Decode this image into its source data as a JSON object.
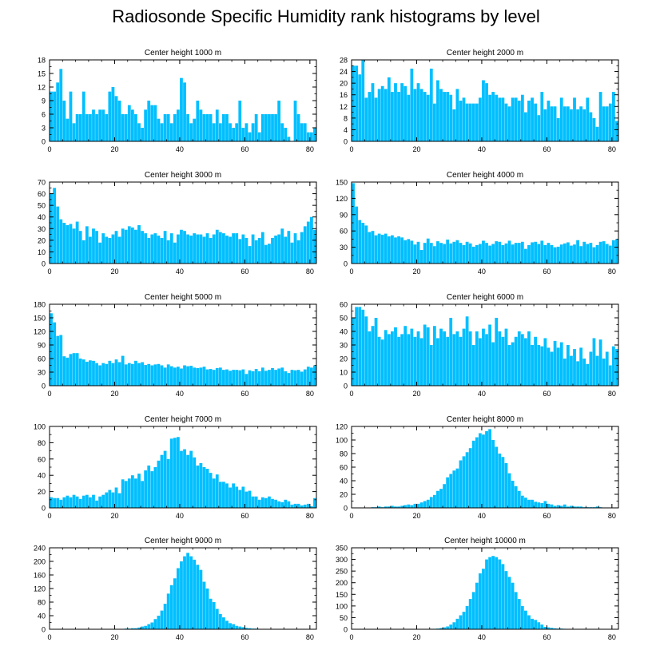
{
  "title": "Radiosonde Specific Humidity rank histograms by level",
  "bar_color": "#00bfff",
  "chart_data": [
    {
      "type": "bar",
      "title": "Center height 1000 m",
      "xlim": [
        0,
        82
      ],
      "ylim": [
        0,
        18
      ],
      "xticks": [
        0,
        20,
        40,
        60,
        80
      ],
      "yticks": [
        0,
        3,
        6,
        9,
        12,
        15,
        18
      ],
      "values": [
        11,
        11,
        13,
        16,
        9,
        5,
        11,
        4,
        6,
        6,
        11,
        6,
        6,
        7,
        6,
        7,
        7,
        6,
        11,
        12,
        10,
        9,
        6,
        6,
        8,
        7,
        6,
        4,
        3,
        7,
        9,
        8,
        8,
        5,
        4,
        6,
        6,
        4,
        6,
        7,
        14,
        13,
        6,
        4,
        5,
        9,
        7,
        6,
        6,
        6,
        4,
        7,
        4,
        6,
        6,
        4,
        3,
        4,
        9,
        3,
        4,
        2,
        4,
        6,
        2,
        6,
        6,
        6,
        6,
        6,
        9,
        4,
        3,
        1,
        0,
        9,
        6,
        4,
        4,
        2,
        2,
        3
      ]
    },
    {
      "type": "bar",
      "title": "Center height 2000 m",
      "xlim": [
        0,
        82
      ],
      "ylim": [
        0,
        28
      ],
      "xticks": [
        0,
        20,
        40,
        60,
        80
      ],
      "yticks": [
        0,
        4,
        8,
        12,
        16,
        20,
        24,
        28
      ],
      "values": [
        26,
        26,
        23,
        28,
        15,
        17,
        20,
        15,
        18,
        19,
        18,
        22,
        17,
        20,
        17,
        20,
        19,
        16,
        25,
        18,
        20,
        18,
        17,
        16,
        25,
        13,
        21,
        18,
        17,
        17,
        16,
        11,
        18,
        14,
        15,
        13,
        13,
        13,
        13,
        15,
        21,
        20,
        16,
        17,
        16,
        15,
        15,
        13,
        12,
        15,
        15,
        14,
        16,
        10,
        14,
        15,
        13,
        9,
        17,
        11,
        14,
        12,
        12,
        8,
        15,
        12,
        12,
        11,
        15,
        11,
        12,
        11,
        15,
        10,
        8,
        5,
        17,
        12,
        12,
        13,
        17,
        7
      ]
    },
    {
      "type": "bar",
      "title": "Center height 3000 m",
      "xlim": [
        0,
        82
      ],
      "ylim": [
        0,
        70
      ],
      "xticks": [
        0,
        20,
        40,
        60,
        80
      ],
      "yticks": [
        0,
        10,
        20,
        30,
        40,
        50,
        60,
        70
      ],
      "values": [
        60,
        65,
        49,
        38,
        35,
        33,
        34,
        30,
        36,
        28,
        20,
        32,
        23,
        30,
        28,
        18,
        26,
        23,
        22,
        25,
        28,
        23,
        30,
        29,
        32,
        31,
        29,
        33,
        28,
        26,
        22,
        25,
        26,
        24,
        22,
        28,
        20,
        26,
        18,
        25,
        29,
        28,
        25,
        24,
        26,
        25,
        25,
        23,
        26,
        22,
        25,
        29,
        27,
        26,
        24,
        23,
        26,
        26,
        21,
        25,
        22,
        15,
        25,
        20,
        22,
        27,
        16,
        17,
        22,
        24,
        25,
        30,
        23,
        28,
        18,
        26,
        20,
        27,
        32,
        36,
        40,
        29
      ]
    },
    {
      "type": "bar",
      "title": "Center height 4000 m",
      "xlim": [
        0,
        82
      ],
      "ylim": [
        0,
        150
      ],
      "xticks": [
        0,
        20,
        40,
        60,
        80
      ],
      "yticks": [
        0,
        30,
        60,
        90,
        120,
        150
      ],
      "values": [
        148,
        105,
        80,
        75,
        70,
        58,
        60,
        52,
        55,
        53,
        55,
        50,
        52,
        48,
        50,
        48,
        43,
        45,
        42,
        35,
        40,
        25,
        38,
        46,
        38,
        32,
        41,
        38,
        36,
        44,
        37,
        40,
        43,
        38,
        34,
        40,
        37,
        31,
        34,
        36,
        42,
        38,
        33,
        36,
        41,
        40,
        34,
        37,
        42,
        35,
        38,
        38,
        40,
        27,
        34,
        39,
        40,
        36,
        42,
        34,
        38,
        34,
        30,
        31,
        35,
        37,
        39,
        33,
        35,
        43,
        32,
        40,
        36,
        38,
        30,
        34,
        40,
        41,
        36,
        33,
        43,
        45
      ]
    },
    {
      "type": "bar",
      "title": "Center height 5000 m",
      "xlim": [
        0,
        82
      ],
      "ylim": [
        0,
        180
      ],
      "xticks": [
        0,
        20,
        40,
        60,
        80
      ],
      "yticks": [
        0,
        30,
        60,
        90,
        120,
        150,
        180
      ],
      "values": [
        160,
        140,
        110,
        112,
        65,
        62,
        70,
        72,
        72,
        60,
        58,
        53,
        56,
        55,
        50,
        45,
        50,
        48,
        55,
        50,
        58,
        52,
        66,
        47,
        50,
        48,
        55,
        50,
        52,
        46,
        48,
        45,
        47,
        48,
        45,
        40,
        47,
        43,
        40,
        42,
        38,
        45,
        43,
        44,
        40,
        39,
        40,
        42,
        36,
        37,
        35,
        39,
        40,
        35,
        36,
        33,
        35,
        35,
        34,
        36,
        26,
        34,
        32,
        37,
        32,
        40,
        33,
        35,
        39,
        35,
        38,
        40,
        32,
        28,
        35,
        34,
        35,
        31,
        36,
        42,
        40,
        45
      ]
    },
    {
      "type": "bar",
      "title": "Center height 6000 m",
      "xlim": [
        0,
        82
      ],
      "ylim": [
        0,
        60
      ],
      "xticks": [
        0,
        20,
        40,
        60,
        80
      ],
      "yticks": [
        0,
        10,
        20,
        30,
        40,
        50,
        60
      ],
      "values": [
        50,
        58,
        58,
        56,
        51,
        40,
        44,
        50,
        36,
        34,
        41,
        38,
        40,
        43,
        36,
        38,
        44,
        38,
        42,
        36,
        40,
        35,
        45,
        43,
        30,
        44,
        35,
        42,
        40,
        36,
        50,
        38,
        40,
        36,
        42,
        51,
        40,
        30,
        40,
        35,
        42,
        38,
        45,
        32,
        50,
        40,
        36,
        42,
        30,
        32,
        36,
        40,
        38,
        35,
        40,
        30,
        36,
        30,
        29,
        35,
        28,
        25,
        33,
        28,
        32,
        20,
        30,
        22,
        27,
        18,
        28,
        20,
        16,
        25,
        35,
        22,
        34,
        20,
        25,
        15,
        29,
        27
      ]
    },
    {
      "type": "bar",
      "title": "Center height 7000 m",
      "xlim": [
        0,
        82
      ],
      "ylim": [
        0,
        100
      ],
      "xticks": [
        0,
        20,
        40,
        60,
        80
      ],
      "yticks": [
        0,
        20,
        40,
        60,
        80,
        100
      ],
      "values": [
        13,
        12,
        12,
        10,
        13,
        15,
        13,
        16,
        14,
        11,
        15,
        16,
        13,
        16,
        9,
        14,
        16,
        19,
        22,
        19,
        25,
        18,
        35,
        33,
        36,
        40,
        36,
        42,
        33,
        46,
        52,
        45,
        50,
        58,
        65,
        70,
        60,
        85,
        86,
        87,
        70,
        72,
        65,
        70,
        62,
        52,
        55,
        50,
        48,
        43,
        36,
        41,
        32,
        32,
        30,
        25,
        30,
        26,
        22,
        26,
        20,
        21,
        14,
        14,
        10,
        13,
        12,
        14,
        11,
        10,
        8,
        7,
        10,
        8,
        4,
        5,
        5,
        3,
        4,
        5,
        2,
        12
      ]
    },
    {
      "type": "bar",
      "title": "Center height 8000 m",
      "xlim": [
        0,
        82
      ],
      "ylim": [
        0,
        120
      ],
      "xticks": [
        0,
        20,
        40,
        60,
        80
      ],
      "yticks": [
        0,
        20,
        40,
        60,
        80,
        100,
        120
      ],
      "values": [
        0,
        0,
        0,
        0,
        0,
        0,
        1,
        1,
        2,
        1,
        2,
        2,
        3,
        2,
        2,
        3,
        4,
        5,
        4,
        6,
        6,
        8,
        10,
        12,
        16,
        19,
        25,
        28,
        35,
        45,
        50,
        55,
        58,
        70,
        76,
        82,
        88,
        99,
        104,
        110,
        108,
        113,
        116,
        100,
        90,
        80,
        75,
        66,
        51,
        40,
        32,
        25,
        18,
        15,
        12,
        12,
        9,
        8,
        7,
        10,
        6,
        5,
        3,
        4,
        3,
        5,
        2,
        3,
        2,
        2,
        2,
        1,
        1,
        1,
        1,
        2,
        1,
        0,
        0,
        0,
        0,
        0
      ]
    },
    {
      "type": "bar",
      "title": "Center height 9000 m",
      "xlim": [
        0,
        82
      ],
      "ylim": [
        0,
        240
      ],
      "xticks": [
        0,
        20,
        40,
        60,
        80
      ],
      "yticks": [
        0,
        40,
        80,
        120,
        160,
        200,
        240
      ],
      "values": [
        0,
        0,
        0,
        0,
        0,
        0,
        0,
        0,
        0,
        0,
        0,
        0,
        0,
        0,
        0,
        0,
        0,
        0,
        0,
        0,
        0,
        1,
        1,
        2,
        2,
        3,
        3,
        5,
        8,
        10,
        15,
        20,
        30,
        40,
        55,
        75,
        105,
        130,
        150,
        180,
        200,
        215,
        225,
        215,
        205,
        190,
        175,
        140,
        120,
        90,
        80,
        60,
        45,
        35,
        25,
        18,
        15,
        10,
        8,
        6,
        4,
        3,
        2,
        2,
        1,
        1,
        1,
        0,
        0,
        0,
        0,
        0,
        0,
        0,
        0,
        0,
        0,
        0,
        0,
        0,
        0,
        0
      ]
    },
    {
      "type": "bar",
      "title": "Center height 10000 m",
      "xlim": [
        0,
        82
      ],
      "ylim": [
        0,
        350
      ],
      "xticks": [
        0,
        20,
        40,
        60,
        80
      ],
      "yticks": [
        0,
        50,
        100,
        150,
        200,
        250,
        300,
        350
      ],
      "values": [
        0,
        0,
        0,
        0,
        0,
        0,
        0,
        0,
        0,
        0,
        0,
        0,
        0,
        0,
        0,
        0,
        0,
        0,
        0,
        0,
        0,
        1,
        1,
        1,
        2,
        2,
        3,
        5,
        8,
        12,
        20,
        30,
        45,
        60,
        75,
        100,
        130,
        160,
        200,
        240,
        260,
        300,
        310,
        315,
        310,
        300,
        280,
        250,
        225,
        200,
        160,
        130,
        100,
        80,
        60,
        45,
        40,
        30,
        20,
        10,
        8,
        6,
        4,
        3,
        3,
        2,
        1,
        1,
        1,
        0,
        0,
        0,
        0,
        0,
        0,
        0,
        0,
        0,
        0,
        0,
        0,
        0
      ]
    }
  ]
}
